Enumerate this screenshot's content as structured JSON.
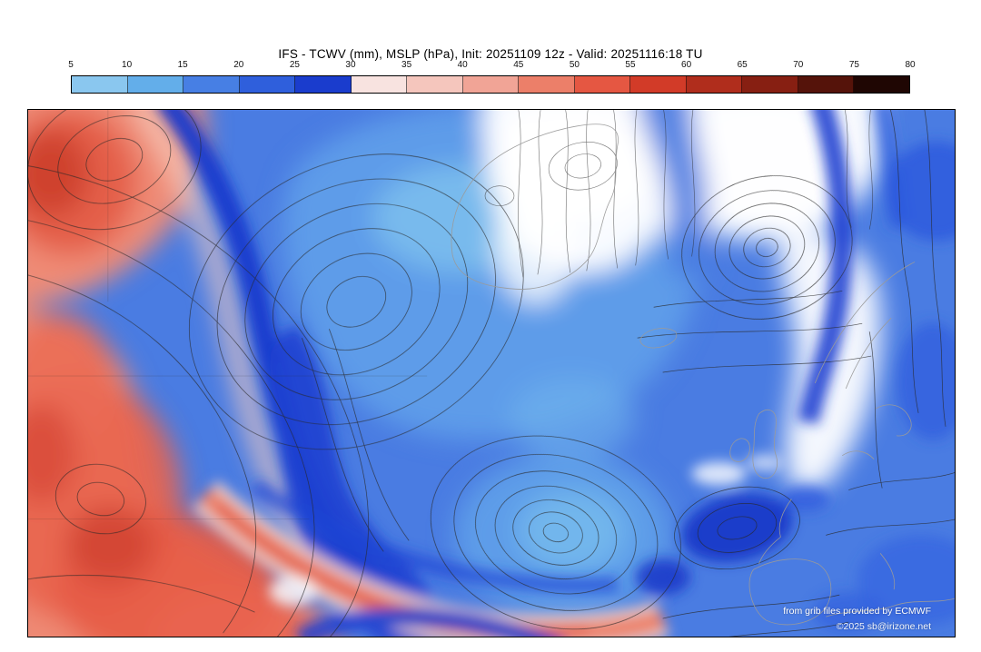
{
  "header": {
    "title": "IFS - TCWV (mm), MSLP (hPa), Init: 20251109 12z - Valid: 20251116:18 TU"
  },
  "colorbar": {
    "variable": "TCWV (mm)",
    "ticks": [
      "5",
      "10",
      "15",
      "20",
      "25",
      "30",
      "35",
      "40",
      "45",
      "50",
      "55",
      "60",
      "65",
      "70",
      "75",
      "80"
    ],
    "segment_colors": [
      "#8ac7ef",
      "#63aeea",
      "#477fe4",
      "#2f5fdc",
      "#1a3ccd",
      "#f8e3e0",
      "#f5c6bd",
      "#f1a496",
      "#ec7f69",
      "#e55742",
      "#d23b28",
      "#b02d1c",
      "#871f12",
      "#55130a",
      "#1f0603"
    ]
  },
  "map": {
    "model": "IFS",
    "fields": [
      "TCWV (mm)",
      "MSLP (hPa)"
    ],
    "init": "20251109 12z",
    "valid": "20251116:18 TU",
    "attribution_line1": "from grib files provided by ECMWF",
    "attribution_line2": "©2025 sb@irizone.net"
  }
}
